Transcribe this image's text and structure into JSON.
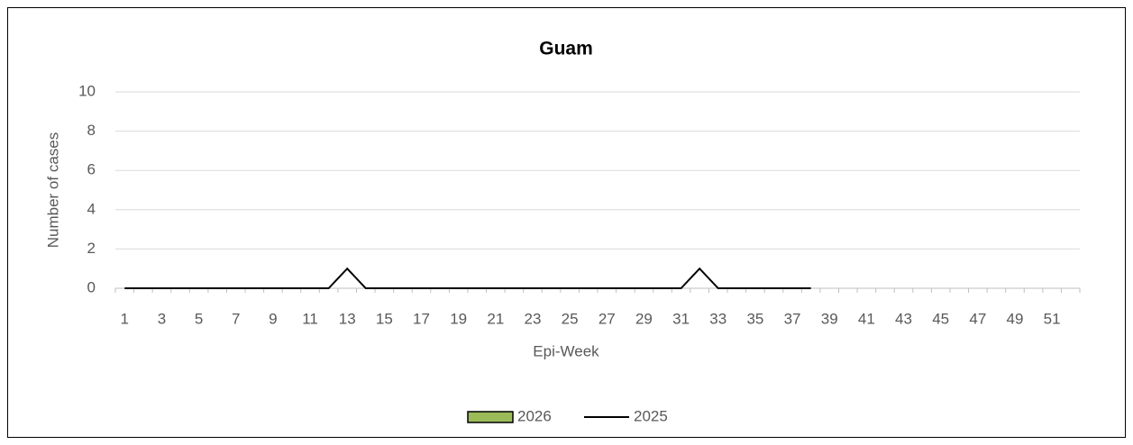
{
  "chart_data": {
    "type": "bar+line",
    "title": "Guam",
    "x_label": "Epi-Week",
    "y_label": "Number of cases",
    "categories": [
      1,
      null,
      3,
      null,
      5,
      null,
      7,
      null,
      9,
      null,
      11,
      null,
      13,
      null,
      15,
      null,
      17,
      null,
      19,
      null,
      21,
      null,
      23,
      null,
      25,
      null,
      27,
      null,
      29,
      null,
      31,
      null,
      33,
      null,
      35,
      null,
      37,
      null,
      39,
      null,
      41,
      null,
      43,
      null,
      45,
      null,
      47,
      null,
      49,
      null,
      51,
      null
    ],
    "series": [
      {
        "name": "2026",
        "type": "bar",
        "color": "#9bbb59",
        "values": [
          null,
          null,
          null,
          null,
          null,
          null,
          null,
          null,
          null,
          null,
          null,
          null,
          null,
          null,
          null,
          null,
          null,
          null,
          null,
          null,
          null,
          null,
          null,
          null,
          null,
          null,
          null,
          null,
          null,
          null,
          null,
          null,
          null,
          null,
          null,
          null,
          null,
          null,
          null,
          null,
          null,
          null,
          null,
          null,
          null,
          null,
          null,
          null,
          null,
          null,
          null,
          null
        ]
      },
      {
        "name": "2025",
        "type": "line",
        "color": "#000000",
        "values": [
          0,
          0,
          0,
          0,
          0,
          0,
          0,
          0,
          0,
          0,
          0,
          0,
          1,
          0,
          0,
          0,
          0,
          0,
          0,
          0,
          0,
          0,
          0,
          0,
          0,
          0,
          0,
          0,
          0,
          0,
          0,
          1,
          0,
          0,
          0,
          0,
          0,
          0,
          null,
          null,
          null,
          null,
          null,
          null,
          null,
          null,
          null,
          null,
          null,
          null,
          null,
          null
        ]
      }
    ],
    "ylim": [
      0,
      10
    ],
    "yticks": [
      0,
      2,
      4,
      6,
      8,
      10
    ],
    "grid": true,
    "legend": "bottom"
  }
}
